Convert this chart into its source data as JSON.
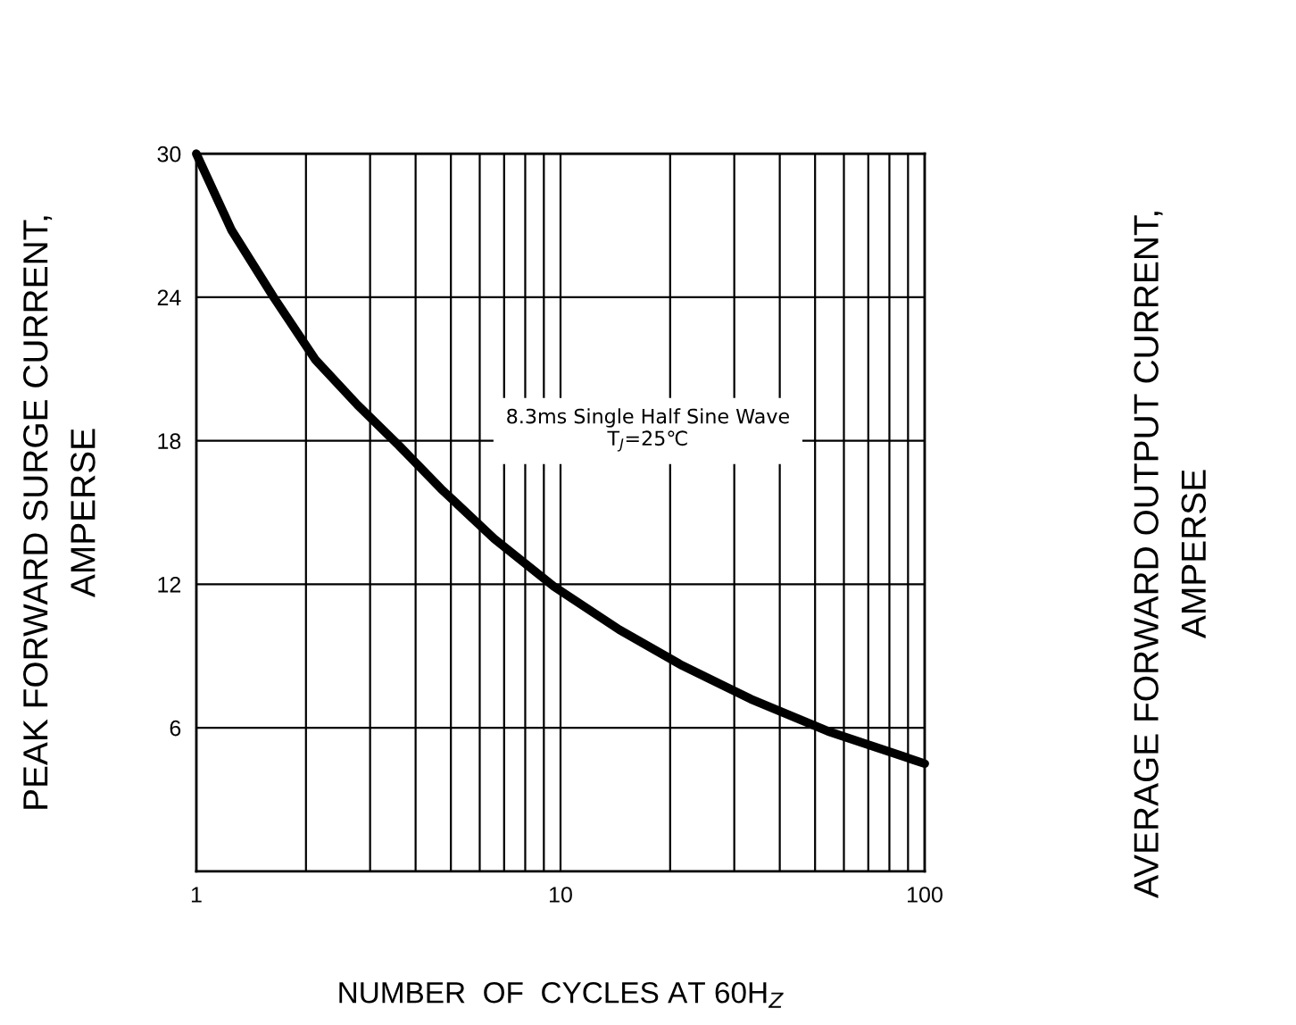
{
  "chart_data": {
    "type": "line",
    "xlabel": "NUMBER  OF  CYCLES AT 60H$_{Z}$",
    "ylabel": "PEAK FORWARD SURGE CURRENT,\nAMPERSE",
    "log": "x",
    "xlim": [
      1,
      100
    ],
    "xticks": [
      1,
      10,
      100
    ],
    "ylim": [
      0,
      30
    ],
    "yticks": [
      6,
      12,
      18,
      24,
      30
    ],
    "grid": true,
    "marker": "none",
    "line_style": "solid",
    "series": [
      {
        "color": "#000000",
        "x": [
          1,
          1.25,
          1.63,
          2.12,
          2.77,
          3.6,
          4.69,
          6.58,
          9.6,
          14.5,
          21.6,
          33.3,
          54.3,
          100
        ],
        "values": [
          30,
          26.8,
          24,
          21.4,
          19.5,
          17.8,
          16.0,
          13.9,
          11.9,
          10.1,
          8.6,
          7.2,
          5.85,
          4.5
        ]
      }
    ],
    "annotations": [
      "8.3ms Single Half Sine Wave\nT$_{J}$=25℃",
      "AVERAGE FORWARD OUTPUT CURRENT,\nAMPERSE"
    ]
  }
}
